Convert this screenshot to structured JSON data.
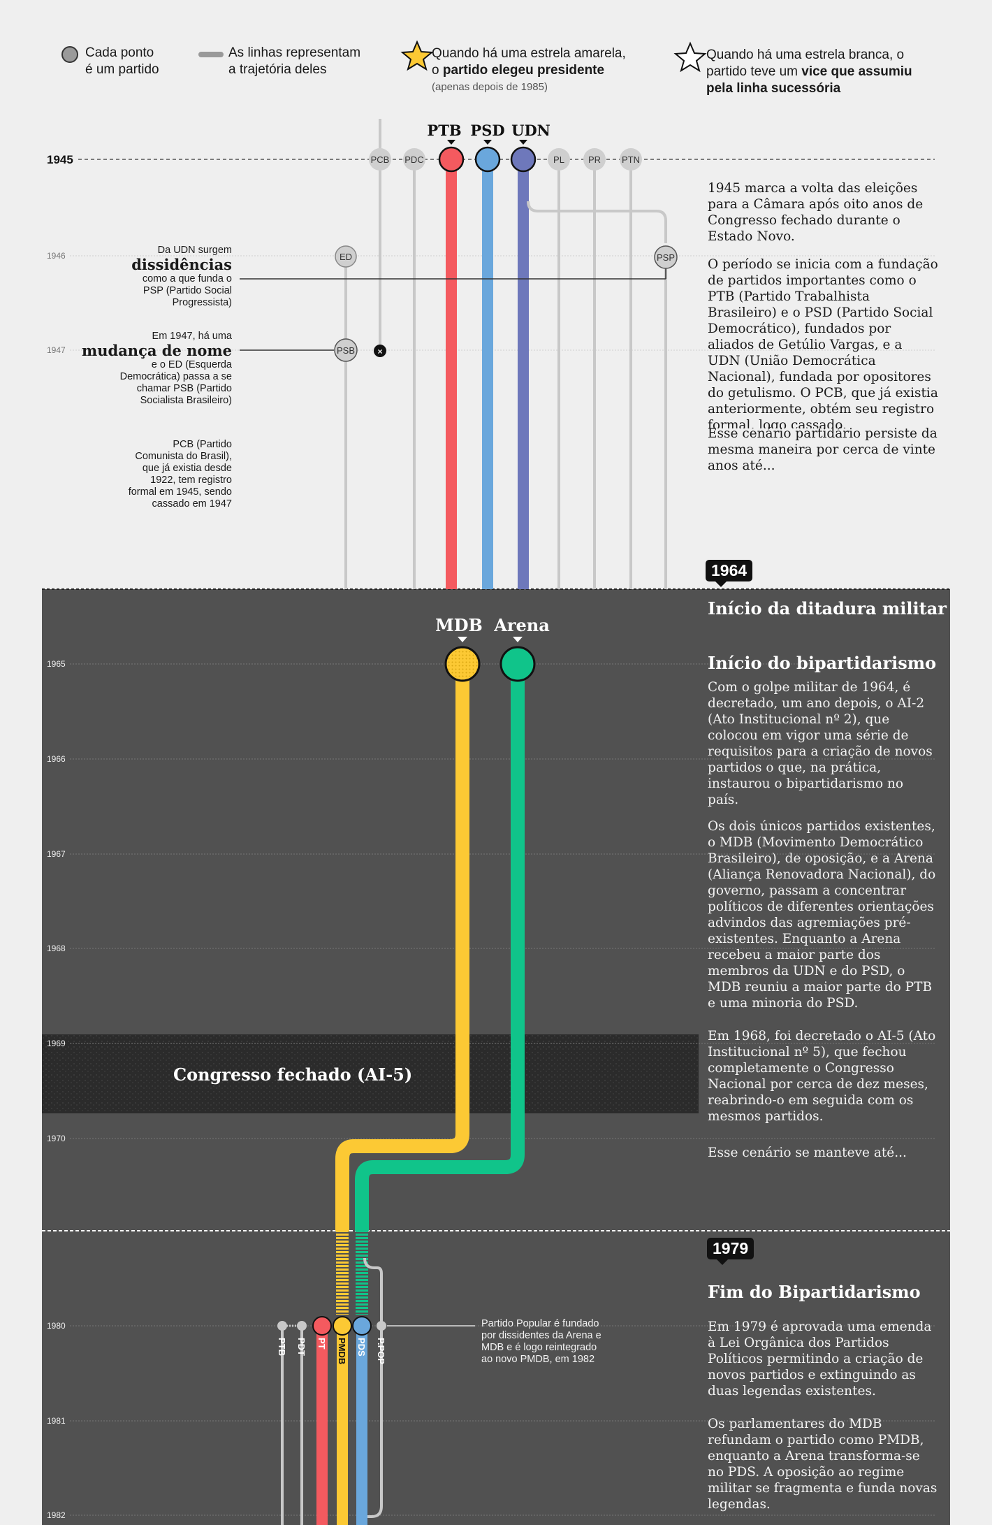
{
  "legend": {
    "dot_line1": "Cada ponto",
    "dot_line2": "é um partido",
    "line_line1": "As linhas representam",
    "line_line2": "a trajetória deles",
    "yellow_star_line1": "Quando há uma estrela amarela,",
    "yellow_star_line2_pre": "o ",
    "yellow_star_line2_bold": "partido elegeu presidente",
    "yellow_star_note": "(apenas depois de 1985)",
    "white_star_line1": "Quando há uma estrela branca, o",
    "white_star_line2_pre": "partido teve um ",
    "white_star_line2_bold": "vice que assumiu",
    "white_star_line3_bold": "pela linha sucessória"
  },
  "years": [
    "1945",
    "1946",
    "1947",
    "1965",
    "1966",
    "1967",
    "1968",
    "1969",
    "1970",
    "1980",
    "1981",
    "1982"
  ],
  "parties_1945": {
    "big": [
      "PTB",
      "PSD",
      "UDN"
    ],
    "small": [
      "PCB",
      "PDC",
      "PL",
      "PR",
      "PTN"
    ]
  },
  "parties_1946": [
    "ED",
    "PSP"
  ],
  "parties_1947": [
    "PSB"
  ],
  "party_colors": {
    "PTB": "#f45a5f",
    "PSD": "#6aa7dc",
    "UDN": "#6e78bb",
    "MDB": "#fcc934",
    "Arena": "#10c48a",
    "PT": "#f45a5f",
    "PMDB": "#fcc934",
    "PDS": "#6aa7dc",
    "minor": "#cccccc"
  },
  "parties_1965": [
    "MDB",
    "Arena"
  ],
  "parties_1980": [
    "PTB",
    "PDT",
    "PT",
    "PMDB",
    "PDS",
    "P.POP"
  ],
  "annotations": {
    "udn_pre": "Da UDN surgem",
    "udn_big": "dissidências",
    "udn_post1": "como a que funda o",
    "udn_post2": "PSP (Partido Social",
    "udn_post3": "Progressista)",
    "psb_pre": "Em 1947, há uma",
    "psb_big": "mudança de nome",
    "psb_post1": "e o ED (Esquerda",
    "psb_post2": "Democrática) passa a se",
    "psb_post3": "chamar PSB (Partido",
    "psb_post4": "Socialista Brasileiro)",
    "pcb1": "PCB (Partido",
    "pcb2": "Comunista do Brasil),",
    "pcb3": "que já existia desde",
    "pcb4": "1922, tem registro",
    "pcb5": "formal em 1945, sendo",
    "pcb6": "cassado em 1947",
    "ppop1": "Partido Popular é fundado",
    "ppop2": "por dissidentes da Arena e",
    "ppop3": "MDB e é logo reintegrado",
    "ppop4": "ao novo PMDB, em 1982"
  },
  "closed_label": "Congresso fechado (AI-5)",
  "badges": {
    "b1964": "1964",
    "b1979": "1979"
  },
  "narrative": {
    "p1945a": "1945 marca a volta das eleições para a Câmara após oito anos de Congresso fechado durante o Estado Novo.",
    "p1945b": "O período se inicia com a fundação de partidos importantes como o PTB (Partido Trabalhista Brasileiro) e o PSD (Partido Social Democrático), fundados por aliados de Getúlio Vargas, e a UDN (União Democrática Nacional), fundada por opositores do getulismo. O PCB, que já existia anteriormente, obtém seu registro formal, logo cassado.",
    "p1945c": "Esse cenário partidário persiste da mesma maneira por cerca de vinte anos até...",
    "title_ditadura": "Início da ditadura militar",
    "title_bipart": "Início do bipartidarismo",
    "p1965a": "Com o golpe militar de 1964, é decretado, um ano depois, o AI-2 (Ato Institucional nº 2), que colocou em vigor uma série de requisitos para a criação de novos partidos o que, na prática, instaurou o bipartidarismo no país.",
    "p1965b": "Os dois únicos partidos existentes, o MDB (Movimento Democrático Brasileiro), de oposição, e a Arena (Aliança Renovadora Nacional), do governo, passam a concentrar políticos de diferentes orientações advindos das agremiações pré-existentes. Enquanto a Arena recebeu a maior parte dos membros da UDN e do PSD, o MDB reuniu a maior parte do PTB e uma minoria do PSD.",
    "p1968": "Em 1968, foi decretado o AI-5 (Ato Institucional nº 5), que fechou completamente o Congresso Nacional por cerca de dez meses, reabrindo-o em seguida com os mesmos partidos.",
    "p1970": "Esse cenário se manteve até...",
    "title_fim": "Fim do Bipartidarismo",
    "p1979a": "Em 1979 é aprovada uma emenda à Lei Orgânica dos Partidos Políticos permitindo a criação de novos partidos e extinguindo as duas legendas existentes.",
    "p1979b": "Os parlamentares do MDB refundam o partido como PMDB, enquanto a Arena transforma-se no PDS. A oposição ao regime militar se fragmenta e funda novas legendas."
  }
}
